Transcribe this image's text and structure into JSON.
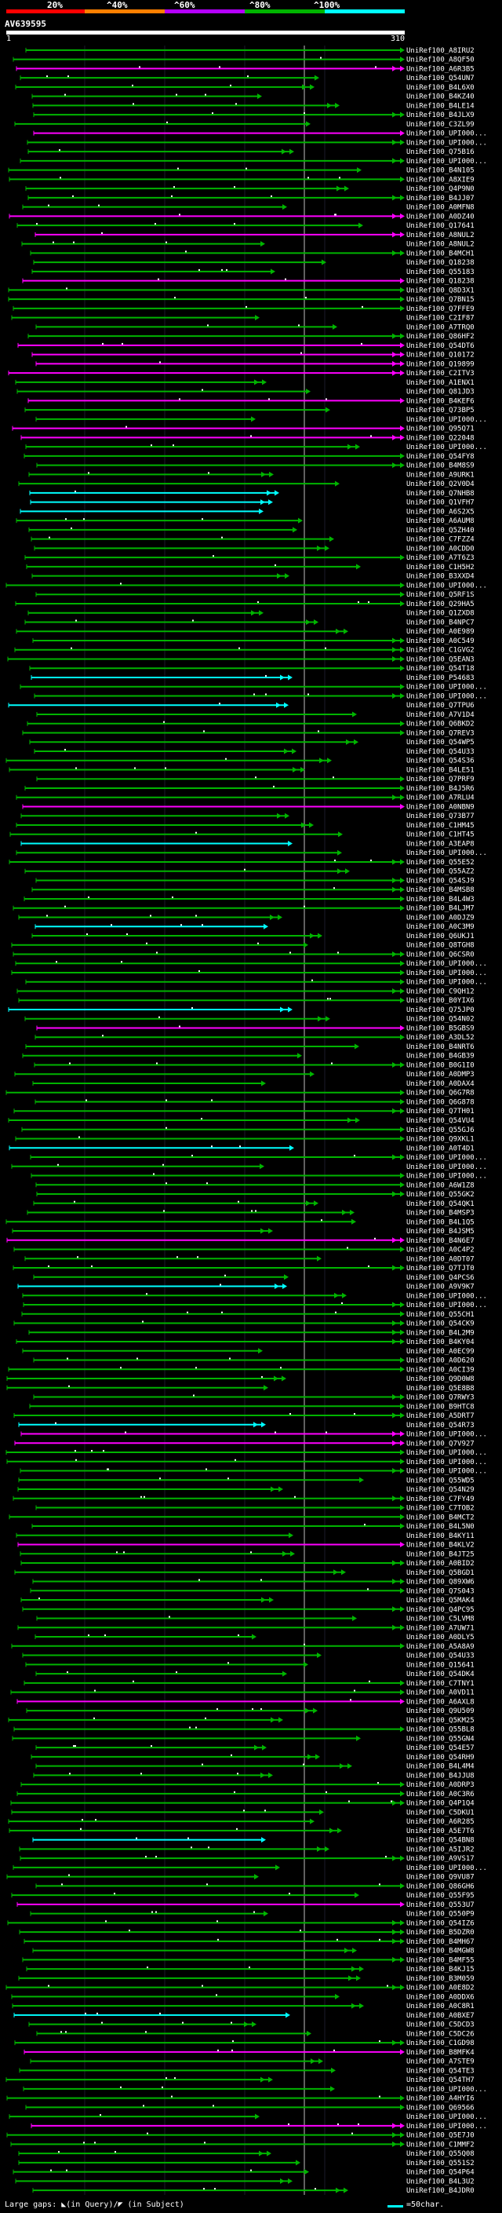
{
  "legend": {
    "items": [
      {
        "label": "20%",
        "color": "#ff0000"
      },
      {
        "label": "^40%",
        "color": "#ff7f00"
      },
      {
        "label": "^60%",
        "color": "#b400ff"
      },
      {
        "label": "^80%",
        "color": "#00b400"
      },
      {
        "label": "^100%",
        "color": "#00ffff"
      }
    ]
  },
  "query": {
    "name": "AV639595",
    "start": "1",
    "end": "310"
  },
  "footer": {
    "gaps_text": "Large gaps: ◣(in Query)/◤ (in Subject)",
    "scale_text": "=50char."
  },
  "colors": {
    "cyan": "#00ffff",
    "green": "#00b400",
    "magenta": "#ff00ff",
    "white": "#ffffff",
    "background": "#000000"
  },
  "hits": [
    {
      "label": "UniRef100_A8IRU2",
      "color": "green"
    },
    {
      "label": "UniRef100_A8QF50",
      "color": "green"
    },
    {
      "label": "UniRef100_A6R3B5",
      "color": "magenta"
    },
    {
      "label": "UniRef100_Q54UN7",
      "color": "green"
    },
    {
      "label": "UniRef100_B4L6X0",
      "color": "green"
    },
    {
      "label": "UniRef100_B4KZ40",
      "color": "green"
    },
    {
      "label": "UniRef100_B4LE14",
      "color": "green"
    },
    {
      "label": "UniRef100_B4JLX9",
      "color": "green"
    },
    {
      "label": "UniRef100_C3ZL99",
      "color": "green"
    },
    {
      "label": "UniRef100_UPI000...",
      "color": "magenta"
    },
    {
      "label": "UniRef100_UPI000...",
      "color": "green"
    },
    {
      "label": "UniRef100_Q75B16",
      "color": "green"
    },
    {
      "label": "UniRef100_UPI000...",
      "color": "green"
    },
    {
      "label": "UniRef100_B4N105",
      "color": "green"
    },
    {
      "label": "UniRef100_A8XIE9",
      "color": "green"
    },
    {
      "label": "UniRef100_Q4P9N0",
      "color": "green"
    },
    {
      "label": "UniRef100_B4JJ07",
      "color": "green"
    },
    {
      "label": "UniRef100_A0MFN8",
      "color": "green"
    },
    {
      "label": "UniRef100_A0DZ40",
      "color": "magenta"
    },
    {
      "label": "UniRef100_Q17641",
      "color": "green"
    },
    {
      "label": "UniRef100_A8NUL2",
      "color": "magenta"
    },
    {
      "label": "UniRef100_A8NUL2",
      "color": "green"
    },
    {
      "label": "UniRef100_B4MCH1",
      "color": "green"
    },
    {
      "label": "UniRef100_Q18238",
      "color": "green"
    },
    {
      "label": "UniRef100_Q55183",
      "color": "green"
    },
    {
      "label": "UniRef100_Q18238",
      "color": "magenta"
    },
    {
      "label": "UniRef100_Q8D3X1",
      "color": "green"
    },
    {
      "label": "UniRef100_Q7BN15",
      "color": "green"
    },
    {
      "label": "UniRef100_Q7FFE9",
      "color": "green"
    },
    {
      "label": "UniRef100_C2IF87",
      "color": "green"
    },
    {
      "label": "UniRef100_A7TRQ0",
      "color": "green"
    },
    {
      "label": "UniRef100_Q86HF2",
      "color": "green"
    },
    {
      "label": "UniRef100_Q54DT6",
      "color": "magenta"
    },
    {
      "label": "UniRef100_Q10172",
      "color": "magenta"
    },
    {
      "label": "UniRef100_Q19899",
      "color": "magenta"
    },
    {
      "label": "UniRef100_C2ITV3",
      "color": "magenta"
    },
    {
      "label": "UniRef100_A1ENX1",
      "color": "green"
    },
    {
      "label": "UniRef100_Q81JD3",
      "color": "green"
    },
    {
      "label": "UniRef100_B4KEF6",
      "color": "magenta"
    },
    {
      "label": "UniRef100_Q73BP5",
      "color": "green"
    },
    {
      "label": "UniRef100_UPI000...",
      "color": "green"
    },
    {
      "label": "UniRef100_Q95Q71",
      "color": "magenta"
    },
    {
      "label": "UniRef100_Q22048",
      "color": "magenta"
    },
    {
      "label": "UniRef100_UPI000...",
      "color": "green"
    },
    {
      "label": "UniRef100_Q54FY8",
      "color": "green"
    },
    {
      "label": "UniRef100_B4M8S9",
      "color": "green"
    },
    {
      "label": "UniRef100_A9URK1",
      "color": "green"
    },
    {
      "label": "UniRef100_Q2V0D4",
      "color": "green"
    },
    {
      "label": "UniRef100_Q7NHB8",
      "color": "cyan"
    },
    {
      "label": "UniRef100_Q1VFH7",
      "color": "cyan"
    },
    {
      "label": "UniRef100_A6S2X5",
      "color": "cyan"
    },
    {
      "label": "UniRef100_A6AUM8",
      "color": "green"
    },
    {
      "label": "UniRef100_Q5ZH40",
      "color": "green"
    },
    {
      "label": "UniRef100_C7FZZ4",
      "color": "green"
    },
    {
      "label": "UniRef100_A0CDD0",
      "color": "green"
    },
    {
      "label": "UniRef100_A7T6Z3",
      "color": "green"
    },
    {
      "label": "UniRef100_C1H5H2",
      "color": "green"
    },
    {
      "label": "UniRef100_B3XXD4",
      "color": "green"
    },
    {
      "label": "UniRef100_UPI000...",
      "color": "green"
    },
    {
      "label": "UniRef100_Q5RF1S",
      "color": "green"
    },
    {
      "label": "UniRef100_Q29HA5",
      "color": "green"
    },
    {
      "label": "UniRef100_Q1ZXD8",
      "color": "green"
    },
    {
      "label": "UniRef100_B4NPC7",
      "color": "green"
    },
    {
      "label": "UniRef100_A0E989",
      "color": "green"
    },
    {
      "label": "UniRef100_A0C549",
      "color": "green"
    },
    {
      "label": "UniRef100_C1GVG2",
      "color": "green"
    },
    {
      "label": "UniRef100_Q5EAN3",
      "color": "green"
    },
    {
      "label": "UniRef100_Q54T18",
      "color": "green"
    },
    {
      "label": "UniRef100_P54683",
      "color": "cyan"
    },
    {
      "label": "UniRef100_UPI000...",
      "color": "green"
    },
    {
      "label": "UniRef100_UPI000...",
      "color": "green"
    },
    {
      "label": "UniRef100_Q7TPU6",
      "color": "cyan"
    },
    {
      "label": "UniRef100_A7V1D4",
      "color": "green"
    },
    {
      "label": "UniRef100_Q6BKD2",
      "color": "green"
    },
    {
      "label": "UniRef100_Q7REV3",
      "color": "green"
    },
    {
      "label": "UniRef100_Q54WP5",
      "color": "green"
    },
    {
      "label": "UniRef100_Q54U33",
      "color": "green"
    },
    {
      "label": "UniRef100_Q54S36",
      "color": "green"
    },
    {
      "label": "UniRef100_B4LE51",
      "color": "green"
    },
    {
      "label": "UniRef100_Q7PRF9",
      "color": "green"
    },
    {
      "label": "UniRef100_B4J5R6",
      "color": "green"
    },
    {
      "label": "UniRef100_A7RLU4",
      "color": "green"
    },
    {
      "label": "UniRef100_A0NBN9",
      "color": "magenta"
    },
    {
      "label": "UniRef100_Q73B77",
      "color": "green"
    },
    {
      "label": "UniRef100_C1HM45",
      "color": "green"
    },
    {
      "label": "UniRef100_C1HT45",
      "color": "green"
    },
    {
      "label": "UniRef100_A3EAP8",
      "color": "cyan"
    },
    {
      "label": "UniRef100_UPI000...",
      "color": "green"
    },
    {
      "label": "UniRef100_Q55E52",
      "color": "green"
    },
    {
      "label": "UniRef100_Q55AZ2",
      "color": "green"
    },
    {
      "label": "UniRef100_Q54SJ9",
      "color": "green"
    },
    {
      "label": "UniRef100_B4MSB8",
      "color": "green"
    },
    {
      "label": "UniRef100_B4L4W3",
      "color": "green"
    },
    {
      "label": "UniRef100_B4LJM7",
      "color": "green"
    },
    {
      "label": "UniRef100_A0DJZ9",
      "color": "green"
    },
    {
      "label": "UniRef100_A0C3M9",
      "color": "cyan"
    },
    {
      "label": "UniRef100_Q6UKJ1",
      "color": "green"
    },
    {
      "label": "UniRef100_Q8TGH8",
      "color": "green"
    },
    {
      "label": "UniRef100_Q6CSR0",
      "color": "green"
    },
    {
      "label": "UniRef100_UPI000...",
      "color": "green"
    },
    {
      "label": "UniRef100_UPI000...",
      "color": "green"
    },
    {
      "label": "UniRef100_UPI000...",
      "color": "green"
    },
    {
      "label": "UniRef100_C9QH12",
      "color": "green"
    },
    {
      "label": "UniRef100_B0YIX6",
      "color": "green"
    },
    {
      "label": "UniRef100_Q75JP0",
      "color": "cyan"
    },
    {
      "label": "UniRef100_Q54N02",
      "color": "green"
    },
    {
      "label": "UniRef100_B5GBS9",
      "color": "magenta"
    },
    {
      "label": "UniRef100_A3DL52",
      "color": "green"
    },
    {
      "label": "UniRef100_B4NRT6",
      "color": "green"
    },
    {
      "label": "UniRef100_B4GB39",
      "color": "green"
    },
    {
      "label": "UniRef100_B0G1I0",
      "color": "green"
    },
    {
      "label": "UniRef100_A0DMP3",
      "color": "green"
    },
    {
      "label": "UniRef100_A0DAX4",
      "color": "green"
    },
    {
      "label": "UniRef100_Q6G7R8",
      "color": "green"
    },
    {
      "label": "UniRef100_Q6G878",
      "color": "green"
    },
    {
      "label": "UniRef100_Q7TH01",
      "color": "green"
    },
    {
      "label": "UniRef100_Q54VU4",
      "color": "green"
    },
    {
      "label": "UniRef100_Q55GJ6",
      "color": "green"
    },
    {
      "label": "UniRef100_Q9XKL1",
      "color": "green"
    },
    {
      "label": "UniRef100_A0T4D1",
      "color": "cyan"
    },
    {
      "label": "UniRef100_UPI000...",
      "color": "green"
    },
    {
      "label": "UniRef100_UPI000...",
      "color": "green"
    },
    {
      "label": "UniRef100_UPI000...",
      "color": "green"
    },
    {
      "label": "UniRef100_A6W1Z8",
      "color": "green"
    },
    {
      "label": "UniRef100_Q55GK2",
      "color": "green"
    },
    {
      "label": "UniRef100_Q54QK1",
      "color": "green"
    },
    {
      "label": "UniRef100_B4MSP3",
      "color": "green"
    },
    {
      "label": "UniRef100_B4L1Q5",
      "color": "green"
    },
    {
      "label": "UniRef100_B4JSM5",
      "color": "green"
    },
    {
      "label": "UniRef100_B4N6E7",
      "color": "magenta"
    },
    {
      "label": "UniRef100_A0C4P2",
      "color": "green"
    },
    {
      "label": "UniRef100_A0DT07",
      "color": "green"
    },
    {
      "label": "UniRef100_Q7TJT0",
      "color": "green"
    },
    {
      "label": "UniRef100_Q4PCS6",
      "color": "green"
    },
    {
      "label": "UniRef100_A9V9K7",
      "color": "cyan"
    },
    {
      "label": "UniRef100_UPI000...",
      "color": "green"
    },
    {
      "label": "UniRef100_UPI000...",
      "color": "green"
    },
    {
      "label": "UniRef100_Q55CH1",
      "color": "green"
    },
    {
      "label": "UniRef100_Q54CK9",
      "color": "green"
    },
    {
      "label": "UniRef100_B4L2M9",
      "color": "green"
    },
    {
      "label": "UniRef100_B4KY04",
      "color": "green"
    },
    {
      "label": "UniRef100_A0EC99",
      "color": "green"
    },
    {
      "label": "UniRef100_A0D620",
      "color": "green"
    },
    {
      "label": "UniRef100_A0CI39",
      "color": "green"
    },
    {
      "label": "UniRef100_Q9D0W8",
      "color": "green"
    },
    {
      "label": "UniRef100_Q5E8B8",
      "color": "green"
    },
    {
      "label": "UniRef100_Q7RWY3",
      "color": "green"
    },
    {
      "label": "UniRef100_B9HTC8",
      "color": "green"
    },
    {
      "label": "UniRef100_A5DRT7",
      "color": "green"
    },
    {
      "label": "UniRef100_Q54R73",
      "color": "cyan"
    },
    {
      "label": "UniRef100_UPI000...",
      "color": "magenta"
    },
    {
      "label": "UniRef100_Q7V927",
      "color": "magenta"
    },
    {
      "label": "UniRef100_UPI000...",
      "color": "green"
    },
    {
      "label": "UniRef100_UPI000...",
      "color": "green"
    },
    {
      "label": "UniRef100_UPI000...",
      "color": "green"
    },
    {
      "label": "UniRef100_Q55WD5",
      "color": "green"
    },
    {
      "label": "UniRef100_Q54N29",
      "color": "green"
    },
    {
      "label": "UniRef100_C7FY49",
      "color": "green"
    },
    {
      "label": "UniRef100_C7TOB2",
      "color": "green"
    },
    {
      "label": "UniRef100_B4MCT2",
      "color": "green"
    },
    {
      "label": "UniRef100_B4L5N0",
      "color": "green"
    },
    {
      "label": "UniRef100_B4KY11",
      "color": "green"
    },
    {
      "label": "UniRef100_B4KLV2",
      "color": "magenta"
    },
    {
      "label": "UniRef100_B4JT25",
      "color": "green"
    },
    {
      "label": "UniRef100_A0BID2",
      "color": "green"
    },
    {
      "label": "UniRef100_Q5BGD1",
      "color": "green"
    },
    {
      "label": "UniRef100_Q89XW6",
      "color": "green"
    },
    {
      "label": "UniRef100_Q7S043",
      "color": "green"
    },
    {
      "label": "UniRef100_Q5MAK4",
      "color": "green"
    },
    {
      "label": "UniRef100_Q4PC95",
      "color": "green"
    },
    {
      "label": "UniRef100_C5LVM8",
      "color": "green"
    },
    {
      "label": "UniRef100_A7UW71",
      "color": "green"
    },
    {
      "label": "UniRef100_A0DLY5",
      "color": "green"
    },
    {
      "label": "UniRef100_A5A8A9",
      "color": "green"
    },
    {
      "label": "UniRef100_Q54U33",
      "color": "green"
    },
    {
      "label": "UniRef100_Q15641",
      "color": "green"
    },
    {
      "label": "UniRef100_Q54DK4",
      "color": "green"
    },
    {
      "label": "UniRef100_C7TNY1",
      "color": "green"
    },
    {
      "label": "UniRef100_A0VD11",
      "color": "green"
    },
    {
      "label": "UniRef100_A6AXL8",
      "color": "magenta"
    },
    {
      "label": "UniRef100_Q9U509",
      "color": "green"
    },
    {
      "label": "UniRef100_Q5KM25",
      "color": "green"
    },
    {
      "label": "UniRef100_Q55BL8",
      "color": "green"
    },
    {
      "label": "UniRef100_Q55GN4",
      "color": "green"
    },
    {
      "label": "UniRef100_Q54E57",
      "color": "green"
    },
    {
      "label": "UniRef100_Q54RH9",
      "color": "green"
    },
    {
      "label": "UniRef100_B4L4M4",
      "color": "green"
    },
    {
      "label": "UniRef100_B4JJU8",
      "color": "green"
    },
    {
      "label": "UniRef100_A0DRP3",
      "color": "green"
    },
    {
      "label": "UniRef100_A0C3R6",
      "color": "green"
    },
    {
      "label": "UniRef100_Q4P1Q4",
      "color": "green"
    },
    {
      "label": "UniRef100_C5DKU1",
      "color": "green"
    },
    {
      "label": "UniRef100_A6R285",
      "color": "green"
    },
    {
      "label": "UniRef100_A5E7T6",
      "color": "green"
    },
    {
      "label": "UniRef100_Q54BN8",
      "color": "cyan"
    },
    {
      "label": "UniRef100_A5IJR2",
      "color": "green"
    },
    {
      "label": "UniRef100_A9VS17",
      "color": "green"
    },
    {
      "label": "UniRef100_UPI000...",
      "color": "green"
    },
    {
      "label": "UniRef100_Q9VU87",
      "color": "green"
    },
    {
      "label": "UniRef100_Q86GH6",
      "color": "green"
    },
    {
      "label": "UniRef100_Q55F95",
      "color": "green"
    },
    {
      "label": "UniRef100_Q553U7",
      "color": "magenta"
    },
    {
      "label": "UniRef100_Q550P9",
      "color": "green"
    },
    {
      "label": "UniRef100_Q54IZ6",
      "color": "green"
    },
    {
      "label": "UniRef100_B5DZR0",
      "color": "green"
    },
    {
      "label": "UniRef100_B4MH67",
      "color": "green"
    },
    {
      "label": "UniRef100_B4MGW8",
      "color": "green"
    },
    {
      "label": "UniRef100_B4MF55",
      "color": "green"
    },
    {
      "label": "UniRef100_B4KJ15",
      "color": "green"
    },
    {
      "label": "UniRef100_B3M059",
      "color": "green"
    },
    {
      "label": "UniRef100_A0E8D2",
      "color": "green"
    },
    {
      "label": "UniRef100_A0DDX6",
      "color": "green"
    },
    {
      "label": "UniRef100_A0C8R1",
      "color": "green"
    },
    {
      "label": "UniRef100_A0BXE7",
      "color": "cyan"
    },
    {
      "label": "UniRef100_C5DCD3",
      "color": "green"
    },
    {
      "label": "UniRef100_C5DC26",
      "color": "green"
    },
    {
      "label": "UniRef100_C1GD98",
      "color": "green"
    },
    {
      "label": "UniRef100_B8MFK4",
      "color": "magenta"
    },
    {
      "label": "UniRef100_A7STE9",
      "color": "green"
    },
    {
      "label": "UniRef100_Q54TE3",
      "color": "green"
    },
    {
      "label": "UniRef100_Q54TH7",
      "color": "green"
    },
    {
      "label": "UniRef100_UPI000...",
      "color": "green"
    },
    {
      "label": "UniRef100_A4HYI6",
      "color": "green"
    },
    {
      "label": "UniRef100_Q69566",
      "color": "green"
    },
    {
      "label": "UniRef100_UPI000...",
      "color": "green"
    },
    {
      "label": "UniRef100_UPI000...",
      "color": "magenta"
    },
    {
      "label": "UniRef100_Q5E7J0",
      "color": "green"
    },
    {
      "label": "UniRef100_C1MMF2",
      "color": "green"
    },
    {
      "label": "UniRef100_Q55Q08",
      "color": "green"
    },
    {
      "label": "UniRef100_Q551S2",
      "color": "green"
    },
    {
      "label": "UniRef100_Q54P64",
      "color": "green"
    },
    {
      "label": "UniRef100_B4L3U2",
      "color": "green"
    },
    {
      "label": "UniRef100_B4JDR0",
      "color": "green"
    }
  ]
}
